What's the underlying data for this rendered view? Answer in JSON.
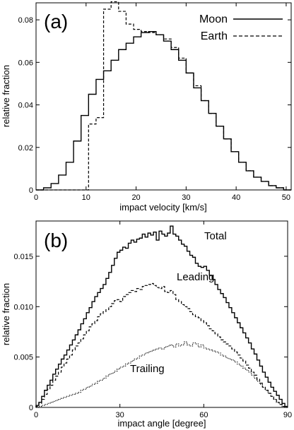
{
  "chart_data": [
    {
      "type": "line",
      "panel_label": "(a)",
      "title": "",
      "xlabel": "impact velocity [km/s]",
      "ylabel": "relative fraction",
      "xlim": [
        0,
        51
      ],
      "ylim": [
        0,
        0.088
      ],
      "xticks": [
        0,
        10,
        20,
        30,
        40,
        50
      ],
      "yticks": [
        0,
        0.02,
        0.04,
        0.06,
        0.08
      ],
      "ytick_labels": [
        "0",
        "0.02",
        "0.04",
        "0.06",
        "0.08"
      ],
      "grid": false,
      "legend_position": "top-right",
      "step": true,
      "bin_edges": [
        0,
        1.5,
        3,
        4.5,
        6,
        7.5,
        9,
        10.5,
        12,
        13.5,
        15,
        16.5,
        18,
        19.5,
        21,
        22.5,
        24,
        25.5,
        27,
        28.5,
        30,
        31.5,
        33,
        34.5,
        36,
        37.5,
        39,
        40.5,
        42,
        43.5,
        45,
        46.5,
        48,
        49.5,
        51
      ],
      "series": [
        {
          "name": "Moon",
          "style": "solid",
          "values": [
            0,
            0.001,
            0.003,
            0.007,
            0.013,
            0.023,
            0.035,
            0.045,
            0.052,
            0.056,
            0.061,
            0.066,
            0.069,
            0.072,
            0.074,
            0.0745,
            0.073,
            0.07,
            0.066,
            0.061,
            0.055,
            0.048,
            0.042,
            0.036,
            0.03,
            0.024,
            0.018,
            0.013,
            0.009,
            0.006,
            0.004,
            0.002,
            0.001,
            0
          ]
        },
        {
          "name": "Earth",
          "style": "dashed",
          "values": [
            0,
            0,
            0,
            0,
            0,
            0,
            0,
            0.031,
            0.034,
            0.085,
            0.0885,
            0.084,
            0.078,
            0.0755,
            0.0745,
            0.074,
            0.073,
            0.071,
            0.067,
            0.062,
            0.055,
            0.049,
            0.042,
            0.036,
            0.03,
            0.024,
            0.018,
            0.013,
            0.009,
            0.006,
            0.004,
            0.002,
            0.001,
            0
          ]
        }
      ]
    },
    {
      "type": "line",
      "panel_label": "(b)",
      "title": "",
      "xlabel": "impact angle [degree]",
      "ylabel": "relative fraction",
      "xlim": [
        0,
        90
      ],
      "ylim": [
        0,
        0.0185
      ],
      "xticks": [
        0,
        30,
        60,
        90
      ],
      "yticks": [
        0,
        0.005,
        0.01,
        0.015
      ],
      "ytick_labels": [
        "0",
        "0.005",
        "0.010",
        "0.015"
      ],
      "grid": false,
      "step": true,
      "bin_width": 1,
      "series": [
        {
          "name": "Total",
          "style": "solid",
          "values": [
            0.0002,
            0.0005,
            0.0011,
            0.0017,
            0.0022,
            0.0027,
            0.0033,
            0.0038,
            0.0043,
            0.0048,
            0.0052,
            0.0057,
            0.0062,
            0.0067,
            0.0072,
            0.0077,
            0.0083,
            0.0088,
            0.0094,
            0.0099,
            0.0105,
            0.011,
            0.0114,
            0.0118,
            0.0122,
            0.0128,
            0.0134,
            0.0141,
            0.0148,
            0.0154,
            0.0156,
            0.0159,
            0.0158,
            0.0163,
            0.0166,
            0.0164,
            0.0167,
            0.0168,
            0.0172,
            0.0169,
            0.0173,
            0.0171,
            0.0174,
            0.0166,
            0.0175,
            0.0172,
            0.017,
            0.0173,
            0.018,
            0.0172,
            0.017,
            0.0166,
            0.0162,
            0.016,
            0.0155,
            0.0151,
            0.0149,
            0.0143,
            0.014,
            0.0139,
            0.014,
            0.0136,
            0.0131,
            0.0127,
            0.0122,
            0.0117,
            0.0113,
            0.0109,
            0.0104,
            0.0099,
            0.0094,
            0.0089,
            0.0084,
            0.0079,
            0.0074,
            0.0069,
            0.0064,
            0.0058,
            0.0053,
            0.0047,
            0.0041,
            0.0035,
            0.003,
            0.0025,
            0.002,
            0.0016,
            0.0012,
            0.0008,
            0.0004,
            0.0001
          ]
        },
        {
          "name": "Leading",
          "style": "dashed",
          "values": [
            0.0001,
            0.0004,
            0.0008,
            0.0013,
            0.0018,
            0.0022,
            0.0027,
            0.0031,
            0.0035,
            0.004,
            0.0044,
            0.0048,
            0.0052,
            0.0057,
            0.0061,
            0.0064,
            0.0068,
            0.0072,
            0.0076,
            0.008,
            0.0083,
            0.0086,
            0.009,
            0.0093,
            0.0095,
            0.0097,
            0.01,
            0.0103,
            0.0106,
            0.0107,
            0.0105,
            0.011,
            0.0112,
            0.0114,
            0.0116,
            0.0115,
            0.0118,
            0.0117,
            0.012,
            0.0121,
            0.0122,
            0.0123,
            0.0121,
            0.0119,
            0.0118,
            0.012,
            0.0115,
            0.0114,
            0.0116,
            0.0112,
            0.0107,
            0.0105,
            0.0102,
            0.01,
            0.0098,
            0.0095,
            0.0092,
            0.009,
            0.0089,
            0.0086,
            0.0084,
            0.0081,
            0.0078,
            0.0076,
            0.0073,
            0.007,
            0.0067,
            0.0065,
            0.0063,
            0.0061,
            0.0058,
            0.0055,
            0.0052,
            0.0049,
            0.0046,
            0.0042,
            0.0039,
            0.0035,
            0.0032,
            0.0028,
            0.0024,
            0.002,
            0.0017,
            0.0014,
            0.0011,
            0.0008,
            0.0005,
            0.0003,
            0.0001,
            0
          ]
        },
        {
          "name": "Trailing",
          "style": "dotted",
          "values": [
            0,
            0.0001,
            0.0002,
            0.0003,
            0.0004,
            0.0005,
            0.0006,
            0.0007,
            0.0008,
            0.0009,
            0.001,
            0.0011,
            0.0012,
            0.0013,
            0.0014,
            0.0015,
            0.0017,
            0.0018,
            0.002,
            0.0021,
            0.0023,
            0.0024,
            0.0026,
            0.0027,
            0.0029,
            0.0031,
            0.0033,
            0.0034,
            0.0036,
            0.0038,
            0.004,
            0.0041,
            0.0043,
            0.0044,
            0.0046,
            0.0048,
            0.0049,
            0.0051,
            0.0052,
            0.0054,
            0.0055,
            0.0056,
            0.0057,
            0.0058,
            0.0059,
            0.0058,
            0.006,
            0.0061,
            0.0062,
            0.006,
            0.0063,
            0.0061,
            0.0062,
            0.0065,
            0.0062,
            0.0061,
            0.0064,
            0.0063,
            0.006,
            0.0062,
            0.0059,
            0.0058,
            0.0057,
            0.0056,
            0.0055,
            0.0054,
            0.0052,
            0.0051,
            0.0049,
            0.0048,
            0.0047,
            0.0045,
            0.0043,
            0.0041,
            0.0039,
            0.0037,
            0.0035,
            0.0032,
            0.0029,
            0.0026,
            0.0023,
            0.002,
            0.0017,
            0.0014,
            0.0011,
            0.0008,
            0.0005,
            0.0003,
            0.0001,
            0
          ]
        }
      ]
    }
  ]
}
